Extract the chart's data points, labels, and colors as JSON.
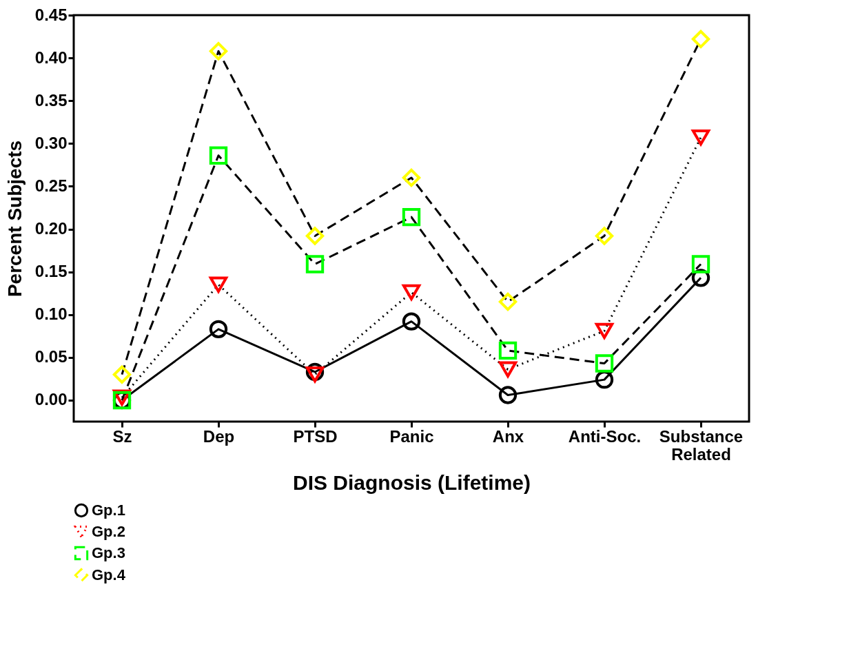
{
  "chart_data": {
    "type": "line",
    "xlabel": "DIS Diagnosis (Lifetime)",
    "ylabel": "Percent Subjects",
    "categories": [
      "Sz",
      "Dep",
      "PTSD",
      "Panic",
      "Anx",
      "Anti-Soc.",
      "Substance Related"
    ],
    "series": [
      {
        "name": "Gp.1",
        "color": "#000000",
        "marker": "circle",
        "line_style": "solid",
        "values": [
          0.0,
          0.083,
          0.033,
          0.092,
          0.006,
          0.024,
          0.143
        ]
      },
      {
        "name": "Gp.2",
        "color": "#ff0000",
        "marker": "triangle",
        "line_style": "dotted",
        "values": [
          0.003,
          0.135,
          0.03,
          0.126,
          0.036,
          0.081,
          0.307
        ]
      },
      {
        "name": "Gp.3",
        "color": "#00ff00",
        "marker": "square",
        "line_style": "dashed",
        "values": [
          0.0,
          0.286,
          0.159,
          0.214,
          0.058,
          0.043,
          0.159
        ]
      },
      {
        "name": "Gp.4",
        "color": "#ffff00",
        "marker": "diamond",
        "line_style": "dashed",
        "values": [
          0.03,
          0.408,
          0.192,
          0.26,
          0.115,
          0.192,
          0.422
        ]
      }
    ],
    "ylim": [
      -0.025,
      0.45
    ],
    "yticks": [
      {
        "value": 0,
        "label": "0.00"
      },
      0.05,
      {
        "value": 0.1,
        "label": "0.10"
      },
      0.15,
      {
        "value": 0.2,
        "label": "0.20"
      },
      0.25,
      {
        "value": 0.3,
        "label": "0.30"
      },
      0.35,
      {
        "value": 0.4,
        "label": "0.40"
      },
      0.45
    ],
    "grid": false,
    "legend": "bottom left"
  }
}
